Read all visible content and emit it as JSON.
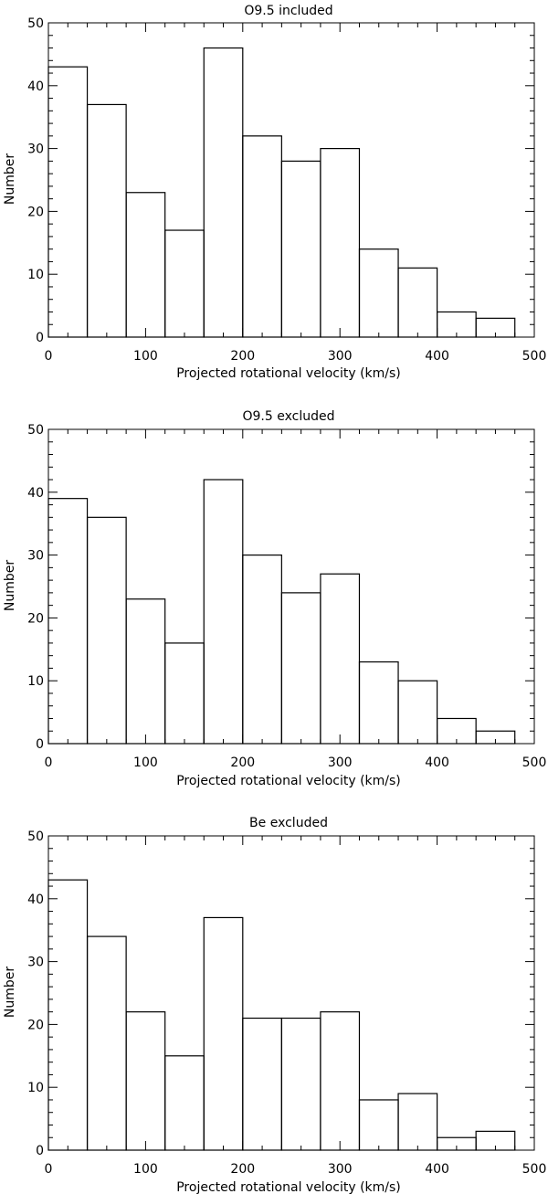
{
  "chart_data": [
    {
      "type": "bar",
      "title": "O9.5 included",
      "xlabel": "Projected rotational velocity (km/s)",
      "ylabel": "Number",
      "bin_edges": [
        0,
        40,
        80,
        120,
        160,
        200,
        240,
        280,
        320,
        360,
        400,
        440,
        480,
        500
      ],
      "values": [
        43,
        37,
        23,
        17,
        46,
        32,
        28,
        30,
        14,
        11,
        4,
        3,
        0
      ],
      "xlim": [
        0,
        500
      ],
      "ylim": [
        0,
        50
      ],
      "xticks": [
        0,
        100,
        200,
        300,
        400,
        500
      ],
      "yticks": [
        0,
        10,
        20,
        30,
        40,
        50
      ],
      "grid": false
    },
    {
      "type": "bar",
      "title": "O9.5 excluded",
      "xlabel": "Projected rotational velocity (km/s)",
      "ylabel": "Number",
      "bin_edges": [
        0,
        40,
        80,
        120,
        160,
        200,
        240,
        280,
        320,
        360,
        400,
        440,
        480,
        500
      ],
      "values": [
        39,
        36,
        23,
        16,
        42,
        30,
        24,
        27,
        13,
        10,
        4,
        2,
        0
      ],
      "xlim": [
        0,
        500
      ],
      "ylim": [
        0,
        50
      ],
      "xticks": [
        0,
        100,
        200,
        300,
        400,
        500
      ],
      "yticks": [
        0,
        10,
        20,
        30,
        40,
        50
      ],
      "grid": false
    },
    {
      "type": "bar",
      "title": "Be excluded",
      "xlabel": "Projected rotational velocity (km/s)",
      "ylabel": "Number",
      "bin_edges": [
        0,
        40,
        80,
        120,
        160,
        200,
        240,
        280,
        320,
        360,
        400,
        440,
        480,
        500
      ],
      "values": [
        43,
        34,
        22,
        15,
        37,
        21,
        21,
        22,
        8,
        9,
        2,
        3,
        0
      ],
      "xlim": [
        0,
        500
      ],
      "ylim": [
        0,
        50
      ],
      "xticks": [
        0,
        100,
        200,
        300,
        400,
        500
      ],
      "yticks": [
        0,
        10,
        20,
        30,
        40,
        50
      ],
      "grid": false
    }
  ]
}
